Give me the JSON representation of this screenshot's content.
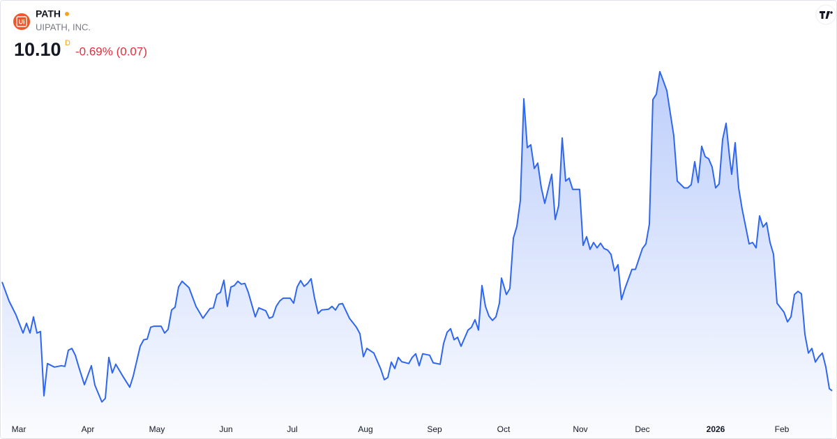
{
  "header": {
    "logo_text": "Ui",
    "symbol": "PATH",
    "company": "UIPATH, INC.",
    "price": "10.10",
    "interval": "D",
    "change": "-0.69% (0.07)"
  },
  "chart_data": {
    "type": "area",
    "color": "#2f66f0",
    "x": [
      0,
      2,
      4,
      6,
      7,
      8,
      9,
      10,
      11,
      12,
      13,
      15,
      17,
      18,
      19,
      20,
      21,
      22,
      23.6,
      25.6,
      26.6,
      28.6,
      29.6,
      30.6,
      31.6,
      32.6,
      34.6,
      36.6,
      37.6,
      39.6,
      40.6,
      41.6,
      42.6,
      43.6,
      45.6,
      46.6,
      47.6,
      48.6,
      49.6,
      50.6,
      51.6,
      53.6,
      55.6,
      57.6,
      59.6,
      60.6,
      61.6,
      62.6,
      63.6,
      64.6,
      65.6,
      66.6,
      67.6,
      68.6,
      69.6,
      70.6,
      72.6,
      73.6,
      75.6,
      76.6,
      77.6,
      78.6,
      79.6,
      80.6,
      82.6,
      83.6,
      84.6,
      85.6,
      86.6,
      87.6,
      88.6,
      89.6,
      90.6,
      91.6,
      93.6,
      94.6,
      95.6,
      96.6,
      97.6,
      99.6,
      101.6,
      102.6,
      103.6,
      104.6,
      106.6,
      108.6,
      109.6,
      110.6,
      111.6,
      112.6,
      113.6,
      114.6,
      116.6,
      117.6,
      118.6,
      119.6,
      120.6,
      122.6,
      123.6,
      125.6,
      126.6,
      127.6,
      128.6,
      129.6,
      130.6,
      131.6,
      133.6,
      134.6,
      135.6,
      136.6,
      137.6,
      138.6,
      139.6,
      140.6,
      141.6,
      142.6,
      143.2,
      144.6,
      145.6,
      146.6,
      147.6,
      148.6,
      149.6,
      150.6,
      151.6,
      152.6,
      153.6,
      154.6,
      155.6,
      157.6,
      158.6,
      159.6,
      160.6,
      161.6,
      162.6,
      163.6,
      165.6,
      166.6,
      167.6,
      168.6,
      169.6,
      170.6,
      171.6,
      172.6,
      173.6,
      174.6,
      175.6,
      176.6,
      177.6,
      178.6,
      180.6,
      181.6,
      183.6,
      184.6,
      185.6,
      186.6,
      187.6,
      188.6,
      189.6,
      190.6,
      192.6,
      193.6,
      195.6,
      196.6,
      197.6,
      198.6,
      199.6,
      200.6,
      201.6,
      202.6,
      203.6,
      204.6,
      205.6,
      206.6,
      207.6,
      208.6,
      209.2,
      210.2,
      211.2,
      212.2,
      214.2,
      215.2,
      216.2,
      217.2,
      218.2,
      219.2,
      220.2,
      221.2,
      222.2,
      224.2,
      225.2,
      226.2,
      227.2,
      228.2,
      229.2,
      230.2,
      231.2,
      232.2,
      233.2,
      234.2,
      235.2,
      236.2,
      237.2,
      238
    ],
    "values": [
      13.13,
      12.6,
      12.21,
      11.71,
      11.98,
      11.71,
      12.16,
      11.71,
      11.75,
      9.96,
      10.86,
      10.76,
      10.8,
      10.78,
      11.23,
      11.28,
      11.09,
      10.76,
      10.27,
      10.8,
      10.26,
      9.79,
      9.89,
      11.03,
      10.6,
      10.84,
      10.51,
      10.2,
      10.51,
      11.34,
      11.52,
      11.54,
      11.87,
      11.9,
      11.9,
      11.71,
      11.81,
      12.35,
      12.43,
      12.99,
      13.15,
      12.97,
      12.45,
      12.12,
      12.39,
      12.41,
      12.78,
      12.84,
      13.18,
      12.45,
      12.99,
      13.03,
      13.15,
      13.07,
      13.09,
      12.84,
      12.16,
      12.41,
      12.33,
      12.12,
      12.16,
      12.45,
      12.6,
      12.68,
      12.68,
      12.54,
      12.99,
      13.17,
      13.01,
      13.09,
      13.22,
      12.68,
      12.25,
      12.35,
      12.37,
      12.45,
      12.35,
      12.51,
      12.53,
      12.12,
      11.87,
      11.69,
      11.05,
      11.28,
      11.15,
      10.7,
      10.41,
      10.47,
      10.9,
      10.72,
      11.03,
      10.91,
      10.86,
      11.03,
      11.13,
      10.8,
      11.13,
      11.09,
      10.88,
      10.84,
      11.42,
      11.73,
      11.83,
      11.52,
      11.59,
      11.34,
      11.79,
      11.87,
      12.08,
      11.79,
      13.03,
      12.45,
      12.18,
      12.06,
      12.16,
      12.54,
      13.24,
      12.78,
      12.95,
      14.35,
      14.68,
      15.4,
      18.23,
      16.87,
      16.95,
      16.29,
      16.44,
      15.76,
      15.32,
      16.13,
      14.87,
      15.26,
      17.14,
      15.94,
      16.02,
      15.71,
      15.71,
      14.15,
      14.39,
      14.04,
      14.23,
      14.08,
      14.21,
      14.06,
      14.02,
      13.9,
      13.44,
      13.61,
      12.64,
      12.95,
      13.48,
      13.48,
      14.06,
      14.19,
      14.74,
      18.21,
      18.36,
      18.99,
      18.73,
      18.46,
      17.2,
      15.94,
      15.75,
      15.75,
      15.84,
      16.48,
      15.9,
      16.91,
      16.62,
      16.56,
      16.33,
      15.75,
      15.86,
      17.1,
      17.55,
      16.6,
      16.13,
      17.01,
      15.75,
      15.16,
      14.19,
      14.23,
      14.08,
      14.97,
      14.66,
      14.78,
      14.23,
      13.9,
      12.54,
      12.29,
      12.02,
      12.16,
      12.78,
      12.87,
      12.8,
      11.67,
      11.15,
      11.28,
      10.9,
      11.05,
      11.15,
      10.76,
      10.16,
      10.1
    ],
    "xlim": [
      0,
      238
    ],
    "ylim": [
      9.34,
      20.4
    ],
    "xticks": [
      {
        "value": 4.8,
        "label": "Mar"
      },
      {
        "value": 24.6,
        "label": "Apr"
      },
      {
        "value": 44.4,
        "label": "May"
      },
      {
        "value": 64.2,
        "label": "Jun"
      },
      {
        "value": 83.2,
        "label": "Jul"
      },
      {
        "value": 104.2,
        "label": "Aug"
      },
      {
        "value": 124,
        "label": "Sep"
      },
      {
        "value": 143.8,
        "label": "Oct"
      },
      {
        "value": 165.8,
        "label": "Nov"
      },
      {
        "value": 183.6,
        "label": "Dec"
      },
      {
        "value": 204.6,
        "label": "2026",
        "emphasis": true
      },
      {
        "value": 223.6,
        "label": "Feb"
      }
    ],
    "grid": false
  }
}
